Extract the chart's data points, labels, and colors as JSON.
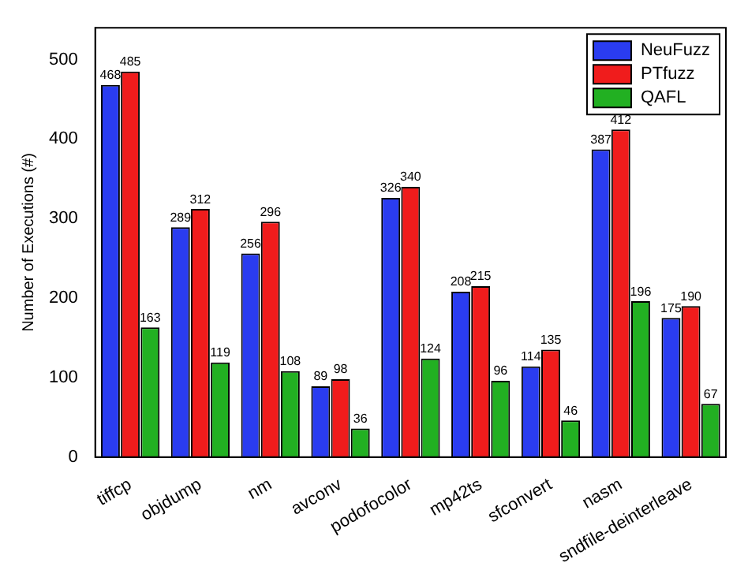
{
  "chart_data": {
    "type": "bar",
    "ylabel": "Number of Executions (#)",
    "categories": [
      "tiffcp",
      "objdump",
      "nm",
      "avconv",
      "podofocolor",
      "mp42ts",
      "sfconvert",
      "nasm",
      "sndfile-deinterleave"
    ],
    "series": [
      {
        "name": "NeuFuzz",
        "color": "#2a3cf0",
        "values": [
          468,
          289,
          256,
          89,
          326,
          208,
          114,
          387,
          175
        ]
      },
      {
        "name": "PTfuzz",
        "color": "#f01c1c",
        "values": [
          485,
          312,
          296,
          98,
          340,
          215,
          135,
          412,
          190
        ]
      },
      {
        "name": "QAFL",
        "color": "#22b022",
        "values": [
          163,
          119,
          108,
          36,
          124,
          96,
          46,
          196,
          67
        ]
      }
    ],
    "ylim": [
      0,
      540
    ],
    "yticks": [
      0,
      100,
      200,
      300,
      400,
      500
    ],
    "grid": false,
    "legend": "top right",
    "data_labels": true
  }
}
